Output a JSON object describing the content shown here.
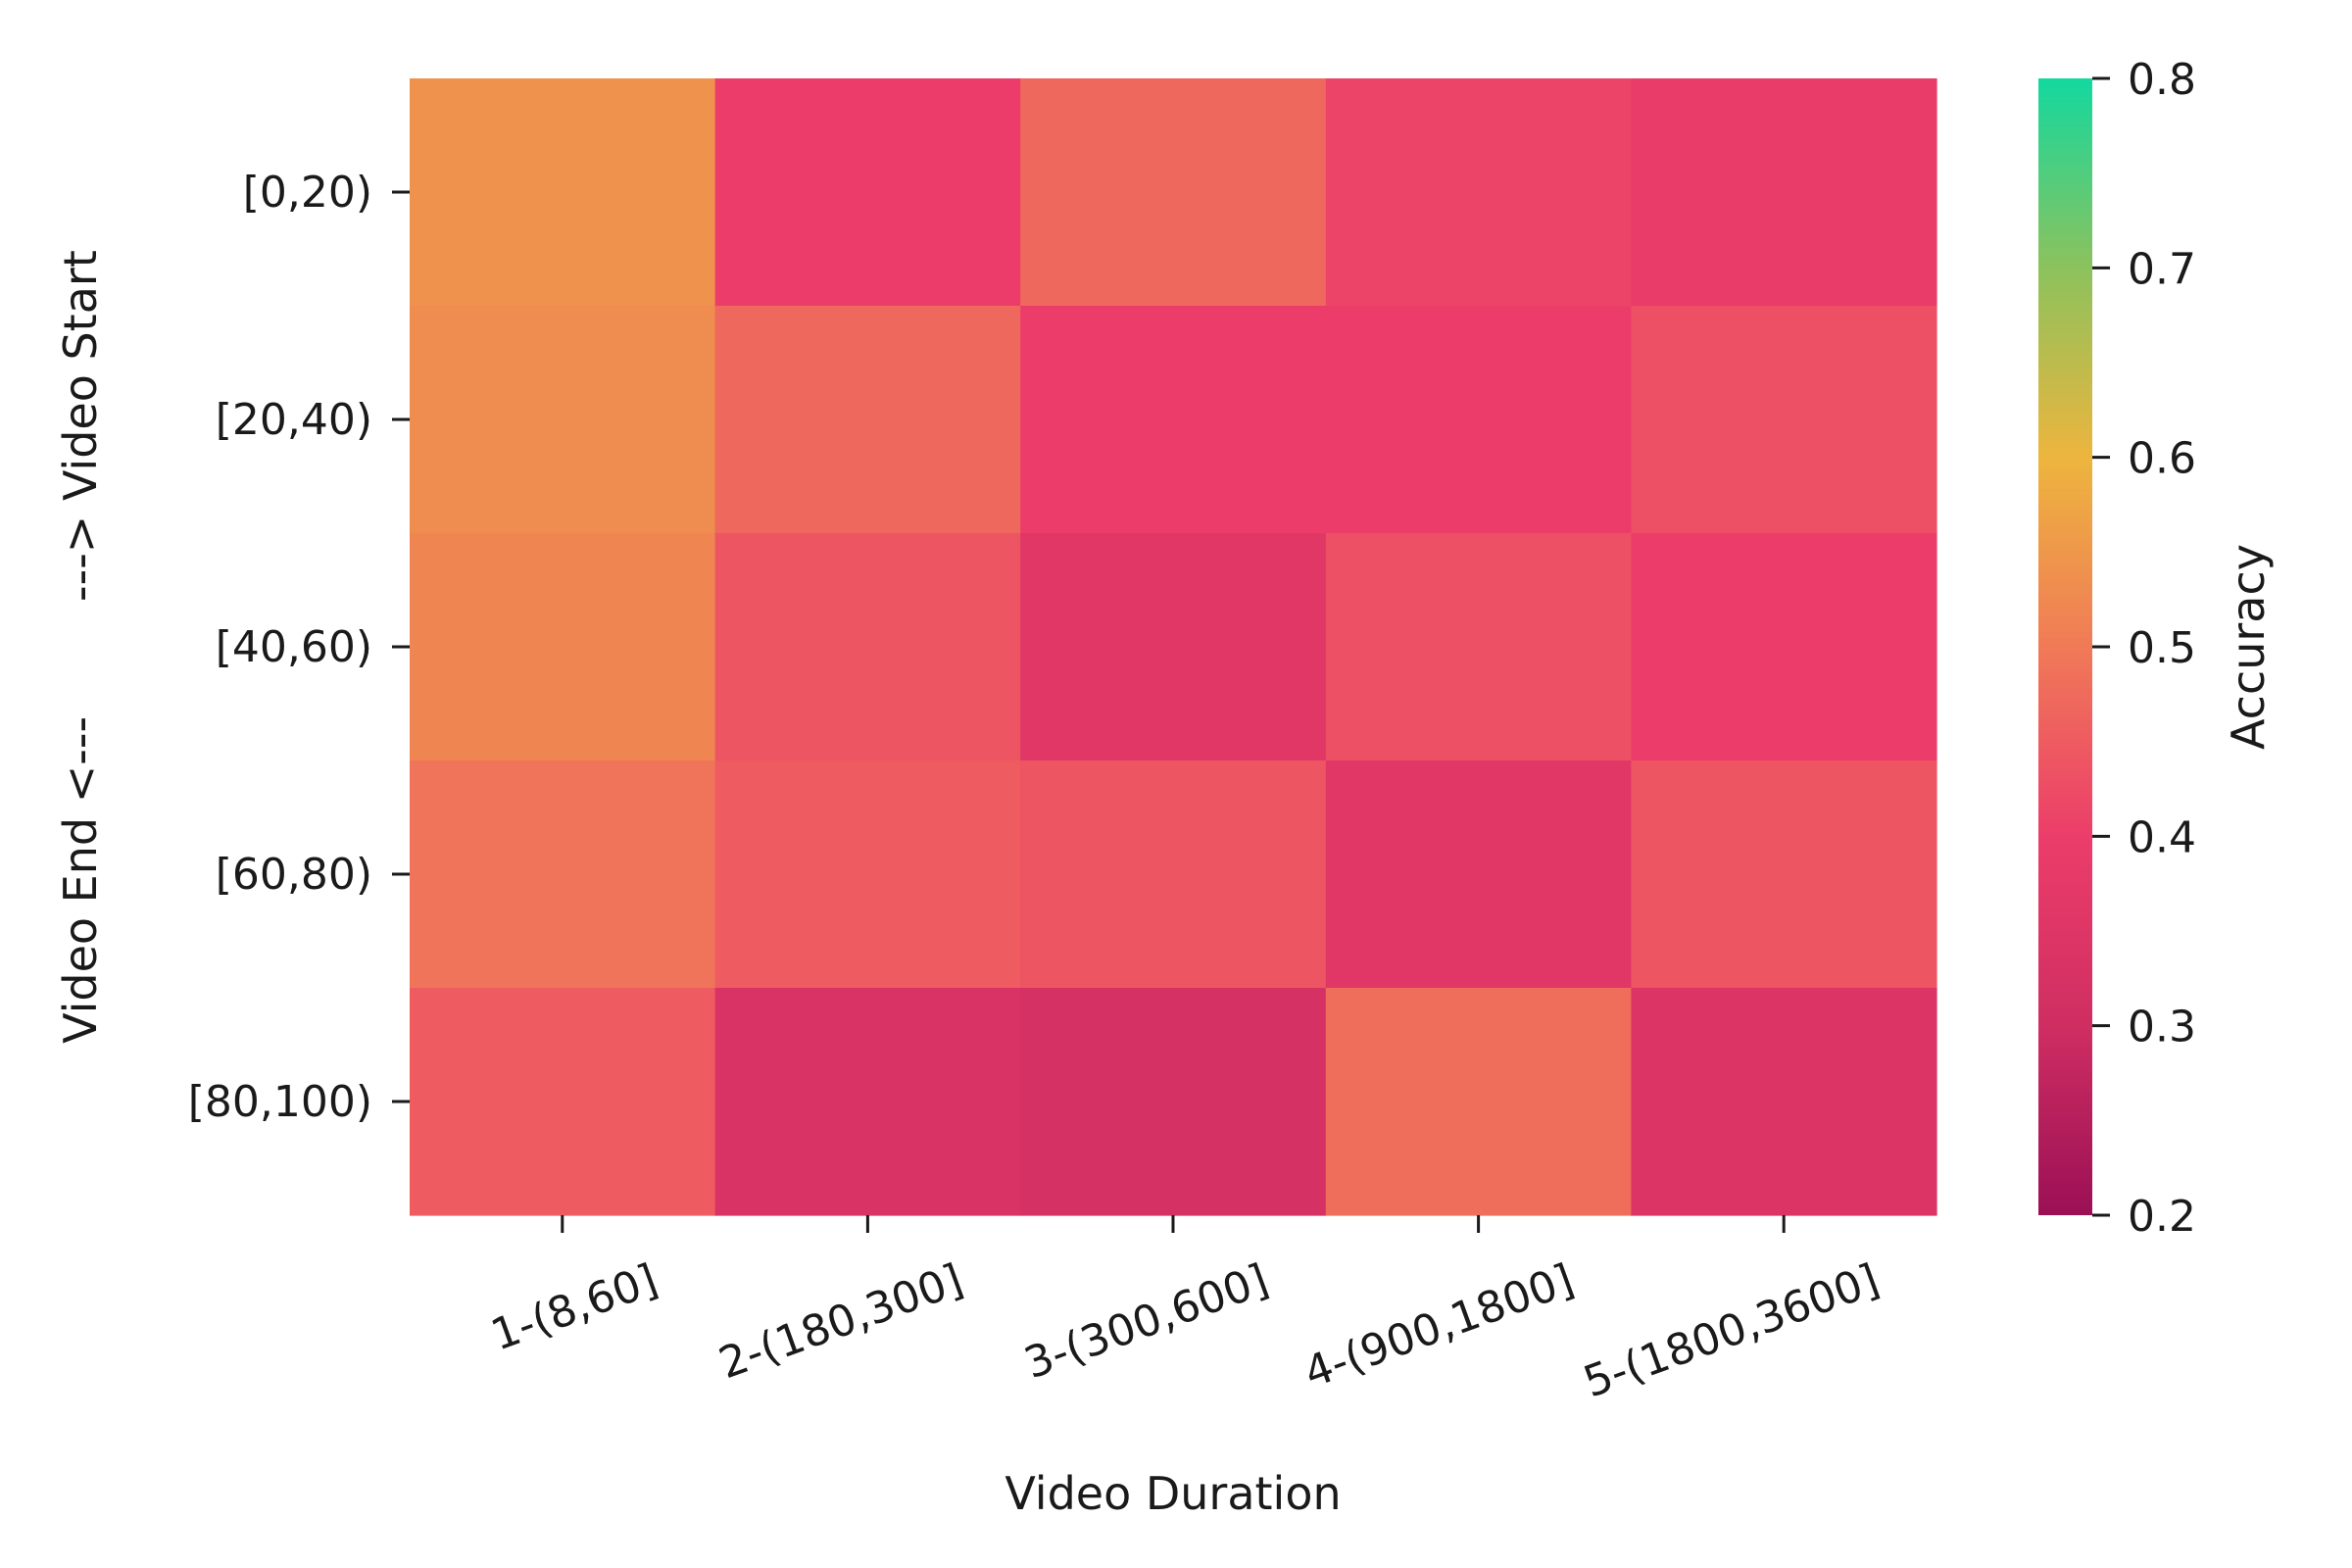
{
  "chart_data": {
    "type": "heatmap",
    "title": "",
    "xlabel": "Video Duration",
    "ylabel": "Video End <---        ---> Video Start",
    "x_categories": [
      "1-(8,60]",
      "2-(180,300]",
      "3-(300,600]",
      "4-(900,1800]",
      "5-(1800,3600]"
    ],
    "y_categories": [
      "[0,20)",
      "[20,40)",
      "[40,60)",
      "[60,80)",
      "[80,100)"
    ],
    "values": [
      [
        0.54,
        0.4,
        0.47,
        0.41,
        0.39
      ],
      [
        0.53,
        0.47,
        0.4,
        0.4,
        0.43
      ],
      [
        0.52,
        0.44,
        0.36,
        0.43,
        0.4
      ],
      [
        0.49,
        0.45,
        0.44,
        0.36,
        0.44
      ],
      [
        0.45,
        0.33,
        0.32,
        0.48,
        0.34
      ]
    ],
    "colorbar": {
      "label": "Accuracy",
      "range": [
        0.2,
        0.8
      ],
      "ticks": [
        "0.2",
        "0.3",
        "0.4",
        "0.5",
        "0.6",
        "0.7",
        "0.8"
      ],
      "colormap": [
        {
          "value": 0.2,
          "color": "#9b1055"
        },
        {
          "value": 0.3,
          "color": "#cf2e62"
        },
        {
          "value": 0.4,
          "color": "#ec3d6a"
        },
        {
          "value": 0.5,
          "color": "#f07a57"
        },
        {
          "value": 0.6,
          "color": "#edb53e"
        },
        {
          "value": 0.7,
          "color": "#8cc25d"
        },
        {
          "value": 0.8,
          "color": "#13d89f"
        }
      ]
    }
  }
}
